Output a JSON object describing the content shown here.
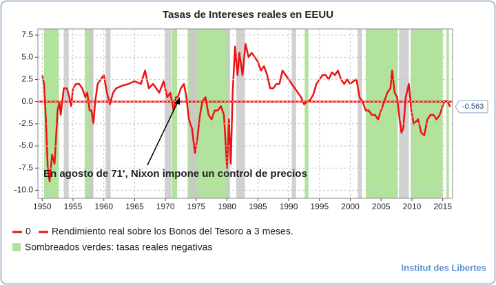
{
  "chart_data": {
    "type": "line",
    "title": "Tasas de Intereses reales en EEUU",
    "annotation": "En agosto de 71', Nixon impone un control de precios",
    "source": "Institut des Libertes",
    "shading_label": "Sombreados verdes: tasas reales negativas",
    "shading_color": "#b1e39c",
    "recession_color": "#c9c9c9",
    "shaded_negative": [
      [
        1950.3,
        1952.7
      ],
      [
        1956.9,
        1958.3
      ],
      [
        1971.0,
        1971.9
      ],
      [
        1973.6,
        1980.3
      ],
      [
        1992.6,
        1993.2
      ],
      [
        2002.5,
        2007.7
      ],
      [
        2009.8,
        2015.0
      ],
      [
        2015.6,
        2016.0
      ]
    ],
    "recessions": [
      [
        1953.5,
        1954.3
      ],
      [
        1957.6,
        1958.3
      ],
      [
        1960.3,
        1961.1
      ],
      [
        1969.9,
        1970.9
      ],
      [
        1973.9,
        1975.2
      ],
      [
        1980.0,
        1980.5
      ],
      [
        1981.5,
        1982.9
      ],
      [
        1990.5,
        1991.2
      ],
      [
        2001.2,
        2001.9
      ],
      [
        2007.9,
        2009.5
      ]
    ],
    "xlim": [
      1949.3,
      2016.6
    ],
    "xticks": [
      1950,
      1955,
      1960,
      1965,
      1970,
      1975,
      1980,
      1985,
      1990,
      1995,
      2000,
      2005,
      2010,
      2015
    ],
    "ylim": [
      -10.9,
      8.2
    ],
    "yticks": [
      7.5,
      {
        "value": 5,
        "label": "5.0"
      },
      2.5,
      {
        "value": 0,
        "label": "0.0"
      },
      -2.5,
      {
        "value": -5,
        "label": "-5.0"
      },
      -7.5,
      {
        "value": -10,
        "label": "-10.0"
      }
    ],
    "grid": true,
    "x": [
      1950.0,
      1950.3,
      1950.6,
      1950.9,
      1951.2,
      1951.6,
      1952.0,
      1952.5,
      1952.8,
      1953.0,
      1953.5,
      1954.0,
      1954.4,
      1954.7,
      1955.0,
      1955.5,
      1956.0,
      1956.5,
      1957.0,
      1957.3,
      1957.7,
      1958.0,
      1958.3,
      1958.6,
      1959.0,
      1959.5,
      1960.0,
      1960.5,
      1961.0,
      1961.5,
      1962.0,
      1963.0,
      1964.0,
      1965.0,
      1966.0,
      1966.7,
      1967.3,
      1968.0,
      1969.0,
      1969.7,
      1970.3,
      1970.8,
      1971.3,
      1971.7,
      1972.0,
      1972.5,
      1973.0,
      1973.4,
      1973.8,
      1974.3,
      1974.8,
      1975.2,
      1975.6,
      1976.0,
      1976.5,
      1977.0,
      1977.5,
      1978.0,
      1978.5,
      1979.0,
      1979.5,
      1980.0,
      1980.3,
      1980.6,
      1980.9,
      1981.3,
      1981.7,
      1982.0,
      1982.5,
      1983.0,
      1983.5,
      1984.0,
      1984.5,
      1985.0,
      1985.5,
      1986.0,
      1986.5,
      1987.0,
      1987.5,
      1988.0,
      1988.5,
      1989.0,
      1989.5,
      1990.0,
      1990.5,
      1991.0,
      1991.5,
      1992.0,
      1992.5,
      1993.0,
      1993.5,
      1994.0,
      1994.5,
      1995.0,
      1995.5,
      1996.0,
      1996.5,
      1997.0,
      1997.5,
      1998.0,
      1998.5,
      1999.0,
      1999.5,
      2000.0,
      2000.5,
      2001.0,
      2001.5,
      2002.0,
      2002.5,
      2003.0,
      2003.5,
      2004.0,
      2004.5,
      2005.0,
      2005.5,
      2006.0,
      2006.5,
      2006.8,
      2007.2,
      2007.6,
      2008.0,
      2008.3,
      2008.6,
      2009.0,
      2009.5,
      2009.9,
      2010.3,
      2011.0,
      2011.5,
      2012.0,
      2012.5,
      2013.0,
      2013.5,
      2014.0,
      2014.5,
      2015.0,
      2015.3,
      2015.8,
      2016.2
    ],
    "series": [
      {
        "name": "Rendimiento real sobre los Bonos del Tesoro a 3 meses.",
        "color": "#ee1111",
        "values": [
          3.0,
          2.0,
          -2.0,
          -7.5,
          -9.0,
          -6.0,
          -7.0,
          -1.0,
          0.0,
          -1.5,
          1.5,
          1.5,
          0.5,
          -0.5,
          1.5,
          2.0,
          2.0,
          1.5,
          0.5,
          1.0,
          -1.0,
          -1.0,
          -2.5,
          0.0,
          2.0,
          2.5,
          3.0,
          1.0,
          -0.3,
          1.0,
          1.5,
          1.8,
          2.0,
          2.3,
          2.0,
          3.5,
          1.5,
          2.0,
          1.0,
          2.3,
          0.5,
          1.0,
          -1.0,
          0.5,
          0.5,
          1.5,
          2.0,
          0.5,
          -2.0,
          -3.0,
          -5.8,
          -4.0,
          -1.5,
          0.0,
          0.5,
          -1.5,
          -2.0,
          -1.0,
          -1.0,
          -0.5,
          -1.5,
          -7.5,
          -2.0,
          -7.0,
          1.0,
          6.2,
          3.0,
          5.5,
          3.0,
          6.5,
          5.0,
          5.5,
          5.0,
          4.5,
          3.5,
          4.0,
          3.0,
          1.5,
          1.5,
          2.0,
          2.0,
          3.5,
          3.0,
          2.5,
          2.0,
          1.5,
          1.0,
          0.5,
          -0.3,
          0.0,
          0.2,
          0.8,
          2.0,
          2.5,
          3.0,
          3.0,
          2.5,
          3.3,
          3.0,
          3.5,
          2.5,
          2.0,
          2.5,
          2.0,
          2.3,
          2.5,
          0.5,
          0.0,
          -1.0,
          -1.0,
          -1.5,
          -1.5,
          -2.0,
          -1.0,
          0.0,
          1.0,
          1.5,
          3.5,
          1.0,
          0.5,
          -2.0,
          -3.5,
          -3.0,
          0.5,
          2.0,
          -1.0,
          -2.5,
          -2.0,
          -3.5,
          -3.8,
          -2.0,
          -1.5,
          -1.5,
          -2.0,
          -1.5,
          -0.5,
          0.1,
          0.0,
          -0.563
        ]
      },
      {
        "name": "0",
        "color": "#ee1111",
        "value": 0
      }
    ]
  }
}
